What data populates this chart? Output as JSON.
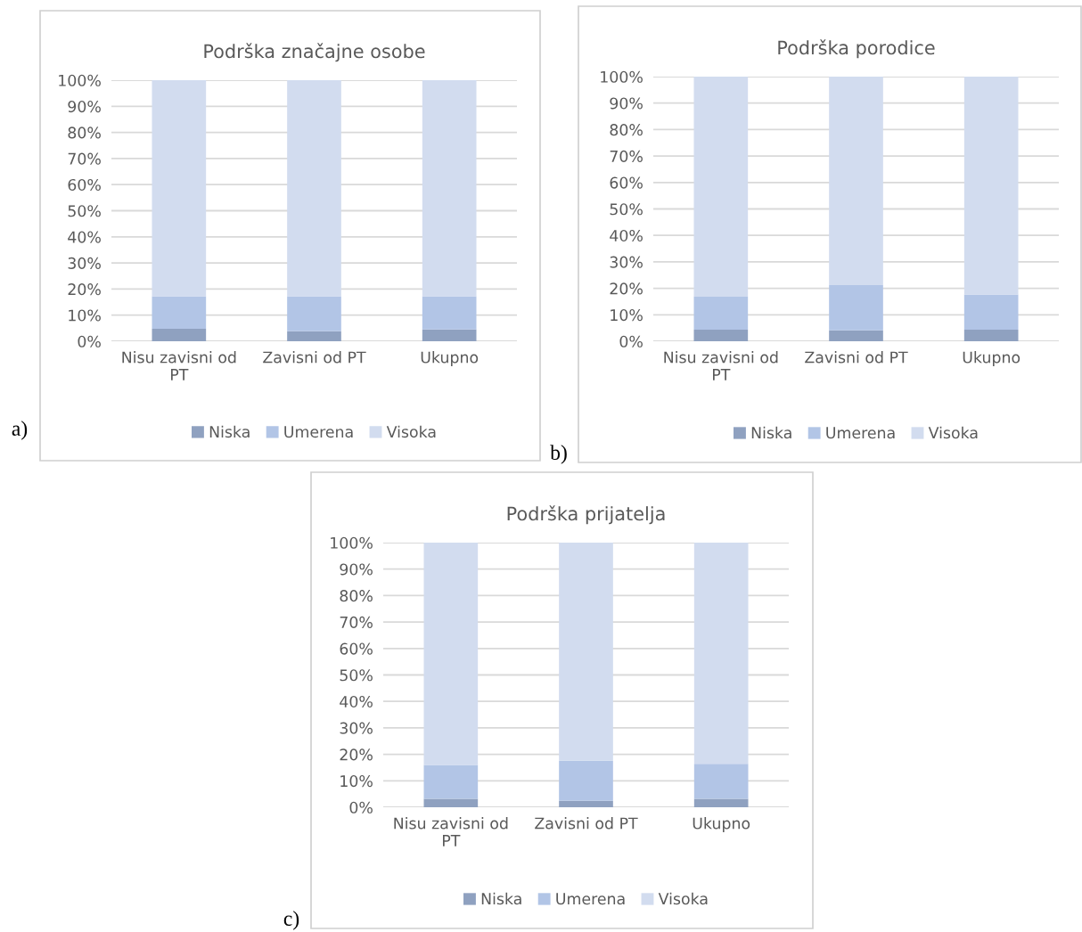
{
  "chart_data": [
    {
      "type": "bar",
      "stacked": true,
      "title": "Podrška značajne osobe",
      "categories": [
        "Nisu zavisni od PT",
        "Zavisni od PT",
        "Ukupno"
      ],
      "series": [
        {
          "name": "Niska",
          "color": "#8fa1c0",
          "values": [
            4.8,
            3.8,
            4.5
          ]
        },
        {
          "name": "Umerena",
          "color": "#b2c5e6",
          "values": [
            12.4,
            13.4,
            12.7
          ]
        },
        {
          "name": "Visoka",
          "color": "#d2dcef",
          "values": [
            82.8,
            82.8,
            82.8
          ]
        }
      ],
      "ylim": [
        0,
        100
      ],
      "yticks": [
        {
          "value": 0,
          "label": "0%"
        },
        {
          "value": 10,
          "label": "10%"
        },
        {
          "value": 20,
          "label": "20%"
        },
        {
          "value": 30,
          "label": "30%"
        },
        {
          "value": 40,
          "label": "40%"
        },
        {
          "value": 50,
          "label": "50%"
        },
        {
          "value": 60,
          "label": "60%"
        },
        {
          "value": 70,
          "label": "70%"
        },
        {
          "value": 80,
          "label": "80%"
        },
        {
          "value": 90,
          "label": "90%"
        },
        {
          "value": 100,
          "label": "100%"
        }
      ],
      "grid": "y",
      "legend": "bottom",
      "annotations": [
        "a)"
      ]
    },
    {
      "type": "bar",
      "stacked": true,
      "title": "Podrška porodice",
      "categories": [
        "Nisu zavisni od PT",
        "Zavisni od PT",
        "Ukupno"
      ],
      "series": [
        {
          "name": "Niska",
          "color": "#8fa1c0",
          "values": [
            4.4,
            4.1,
            4.4
          ]
        },
        {
          "name": "Umerena",
          "color": "#b2c5e6",
          "values": [
            12.4,
            17.1,
            13.3
          ]
        },
        {
          "name": "Visoka",
          "color": "#d2dcef",
          "values": [
            83.2,
            78.8,
            82.3
          ]
        }
      ],
      "ylim": [
        0,
        100
      ],
      "yticks": [
        {
          "value": 0,
          "label": "0%"
        },
        {
          "value": 10,
          "label": "10%"
        },
        {
          "value": 20,
          "label": "20%"
        },
        {
          "value": 30,
          "label": "30%"
        },
        {
          "value": 40,
          "label": "40%"
        },
        {
          "value": 50,
          "label": "50%"
        },
        {
          "value": 60,
          "label": "60%"
        },
        {
          "value": 70,
          "label": "70%"
        },
        {
          "value": 80,
          "label": "80%"
        },
        {
          "value": 90,
          "label": "90%"
        },
        {
          "value": 100,
          "label": "100%"
        }
      ],
      "grid": "y",
      "legend": "bottom",
      "annotations": [
        "b)"
      ]
    },
    {
      "type": "bar",
      "stacked": true,
      "title": "Podrška prijatelja",
      "categories": [
        "Nisu zavisni od PT",
        "Zavisni od PT",
        "Ukupno"
      ],
      "series": [
        {
          "name": "Niska",
          "color": "#8fa1c0",
          "values": [
            3.2,
            2.4,
            3.2
          ]
        },
        {
          "name": "Umerena",
          "color": "#b2c5e6",
          "values": [
            12.8,
            15.2,
            13.2
          ]
        },
        {
          "name": "Visoka",
          "color": "#d2dcef",
          "values": [
            84.0,
            82.4,
            83.6
          ]
        }
      ],
      "ylim": [
        0,
        100
      ],
      "yticks": [
        {
          "value": 0,
          "label": "0%"
        },
        {
          "value": 10,
          "label": "10%"
        },
        {
          "value": 20,
          "label": "20%"
        },
        {
          "value": 30,
          "label": "30%"
        },
        {
          "value": 40,
          "label": "40%"
        },
        {
          "value": 50,
          "label": "50%"
        },
        {
          "value": 60,
          "label": "60%"
        },
        {
          "value": 70,
          "label": "70%"
        },
        {
          "value": 80,
          "label": "80%"
        },
        {
          "value": 90,
          "label": "90%"
        },
        {
          "value": 100,
          "label": "100%"
        }
      ],
      "grid": "y",
      "legend": "bottom",
      "annotations": [
        "c)"
      ]
    }
  ]
}
